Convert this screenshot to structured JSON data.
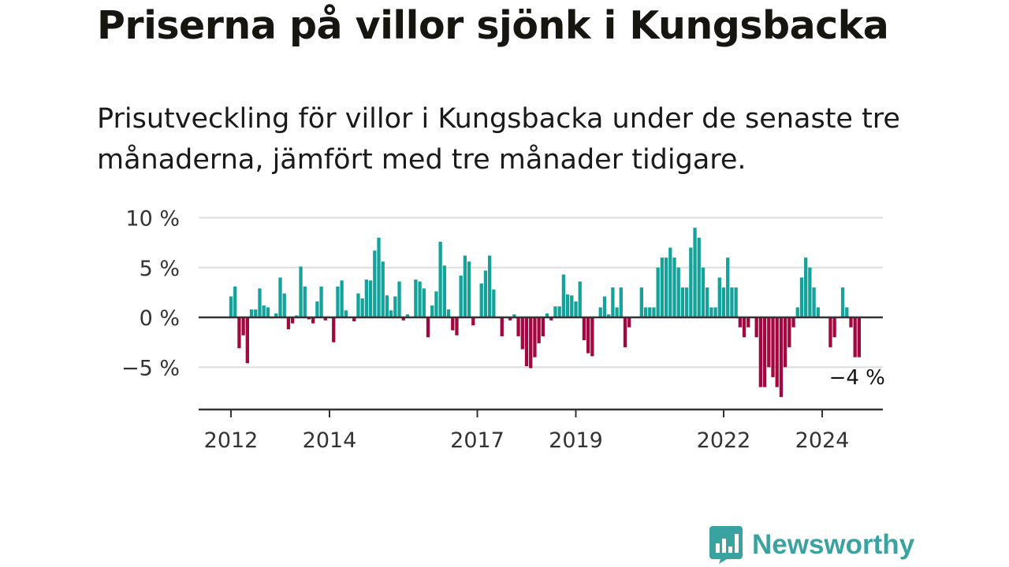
{
  "title": "Priserna på villor sjönk i Kungsbacka",
  "subtitle": "Prisutveckling för villor i Kungsbacka under de senaste tre månaderna, jämfört med tre månader tidigare.",
  "brand": {
    "name": "Newsworthy",
    "icon": "bar-chart-speech-bubble-icon",
    "color": "#3aa3a0"
  },
  "colors": {
    "positive": "#14a39b",
    "negative": "#a3073f",
    "zero_line": "#333333",
    "grid": "#dddddd"
  },
  "chart_data": {
    "type": "bar",
    "ylim": [
      -9,
      10
    ],
    "yticks": [
      10,
      5,
      0,
      -5
    ],
    "ytick_labels": [
      "10 %",
      "5 %",
      "0 %",
      "−5 %"
    ],
    "xticks": [
      2012,
      2014,
      2017,
      2019,
      2022,
      2024
    ],
    "xtick_labels": [
      "2012",
      "2014",
      "2017",
      "2019",
      "2022",
      "2024"
    ],
    "last_value_label": "−4 %",
    "grid": true,
    "x_start": 2012.0,
    "x_step_months": 1,
    "values": [
      2.1,
      3.1,
      -3.1,
      -1.8,
      -4.6,
      0.8,
      0.8,
      2.9,
      1.2,
      1.0,
      -0.1,
      0.4,
      4.0,
      2.4,
      -1.2,
      -0.6,
      0.2,
      5.1,
      3.1,
      -0.2,
      -0.6,
      1.6,
      3.1,
      -0.3,
      0.0,
      -2.5,
      3.1,
      3.7,
      0.7,
      0.0,
      -0.4,
      2.4,
      1.9,
      3.8,
      3.7,
      6.7,
      8.0,
      5.6,
      2.2,
      0.7,
      2.1,
      3.6,
      -0.3,
      0.3,
      0.0,
      3.8,
      3.6,
      2.9,
      -2.0,
      1.2,
      2.6,
      7.6,
      5.2,
      0.8,
      -1.3,
      -1.8,
      4.2,
      6.2,
      5.6,
      -0.8,
      0.0,
      3.4,
      4.7,
      6.2,
      2.8,
      0.0,
      -1.9,
      0.0,
      -0.3,
      0.3,
      -1.9,
      -3.2,
      -4.9,
      -5.1,
      -4.0,
      -2.6,
      -1.9,
      0.4,
      -0.3,
      1.1,
      1.1,
      4.3,
      2.3,
      2.2,
      1.6,
      3.6,
      -2.3,
      -3.6,
      -3.9,
      0.0,
      1.0,
      2.1,
      0.3,
      3.0,
      1.0,
      3.0,
      -3.0,
      -1.0,
      0.0,
      0.0,
      3.0,
      1.0,
      1.0,
      1.0,
      5.0,
      6.0,
      6.0,
      7.0,
      6.0,
      5.0,
      3.0,
      3.0,
      7.0,
      9.0,
      8.0,
      5.0,
      3.0,
      1.0,
      1.0,
      4.0,
      3.0,
      6.0,
      3.0,
      3.0,
      -1.0,
      -2.0,
      -1.0,
      0.0,
      -2.0,
      -7.0,
      -7.0,
      -5.0,
      -6.0,
      -7.0,
      -8.0,
      -5.0,
      -3.0,
      -1.0,
      1.0,
      4.0,
      6.0,
      5.0,
      3.0,
      1.0,
      0.0,
      0.0,
      -3.0,
      -2.0,
      0.0,
      3.0,
      1.0,
      -1.0,
      -4.0,
      -4.0
    ]
  }
}
